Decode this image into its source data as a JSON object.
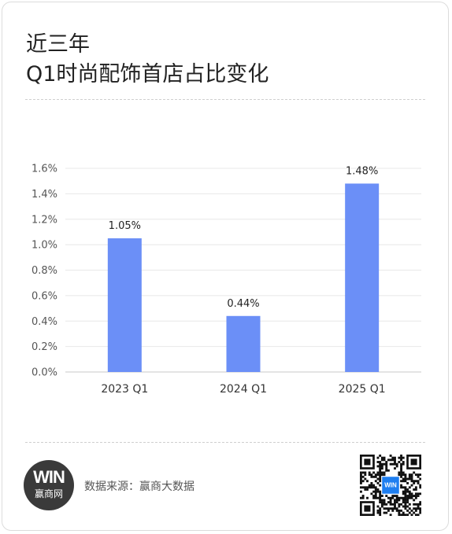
{
  "title_line1": "近三年",
  "title_line2": "Q1时尚配饰首店占比变化",
  "chart_data": {
    "type": "bar",
    "categories": [
      "2023 Q1",
      "2024 Q1",
      "2025 Q1"
    ],
    "values": [
      1.05,
      0.44,
      1.48
    ],
    "value_labels": [
      "1.05%",
      "0.44%",
      "1.48%"
    ],
    "ylim": [
      0,
      1.6
    ],
    "yticks": [
      "0.0%",
      "0.2%",
      "0.4%",
      "0.6%",
      "0.8%",
      "1.0%",
      "1.2%",
      "1.4%",
      "1.6%"
    ],
    "grid": true,
    "bar_color": "#6b8ff7"
  },
  "footer": {
    "logo_mark": "WIN",
    "logo_text": "赢商网",
    "source": "数据来源：赢商大数据",
    "qr_badge": "WIN"
  }
}
